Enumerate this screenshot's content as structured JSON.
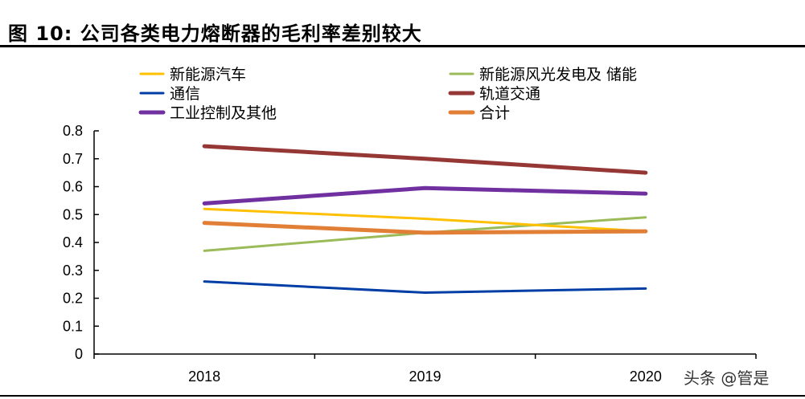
{
  "title": "图 10:  公司各类电力熔断器的毛利率差别较大",
  "watermark": "头条 @管是",
  "chart_data": {
    "type": "line",
    "title": "图 10:  公司各类电力熔断器的毛利率差别较大",
    "categories": [
      "2018",
      "2019",
      "2020"
    ],
    "ylim": [
      0,
      0.8
    ],
    "yticks": [
      "0",
      "0.1",
      "0.2",
      "0.3",
      "0.4",
      "0.5",
      "0.6",
      "0.7",
      "0.8"
    ],
    "grid": false,
    "legend_placement": "top",
    "series": [
      {
        "name": "新能源汽车",
        "color": "#FFC000",
        "values": [
          0.52,
          0.485,
          0.44
        ]
      },
      {
        "name": "新能源风光发电及 储能",
        "color": "#9BBB59",
        "values": [
          0.37,
          0.435,
          0.49
        ]
      },
      {
        "name": "通信",
        "color": "#003DA5",
        "values": [
          0.26,
          0.22,
          0.235
        ]
      },
      {
        "name": "轨道交通",
        "color": "#953735",
        "values": [
          0.745,
          0.7,
          0.65
        ]
      },
      {
        "name": "工业控制及其他",
        "color": "#7030A0",
        "values": [
          0.54,
          0.595,
          0.575
        ]
      },
      {
        "name": "合计",
        "color": "#E07F35",
        "values": [
          0.47,
          0.435,
          0.44
        ]
      }
    ]
  }
}
